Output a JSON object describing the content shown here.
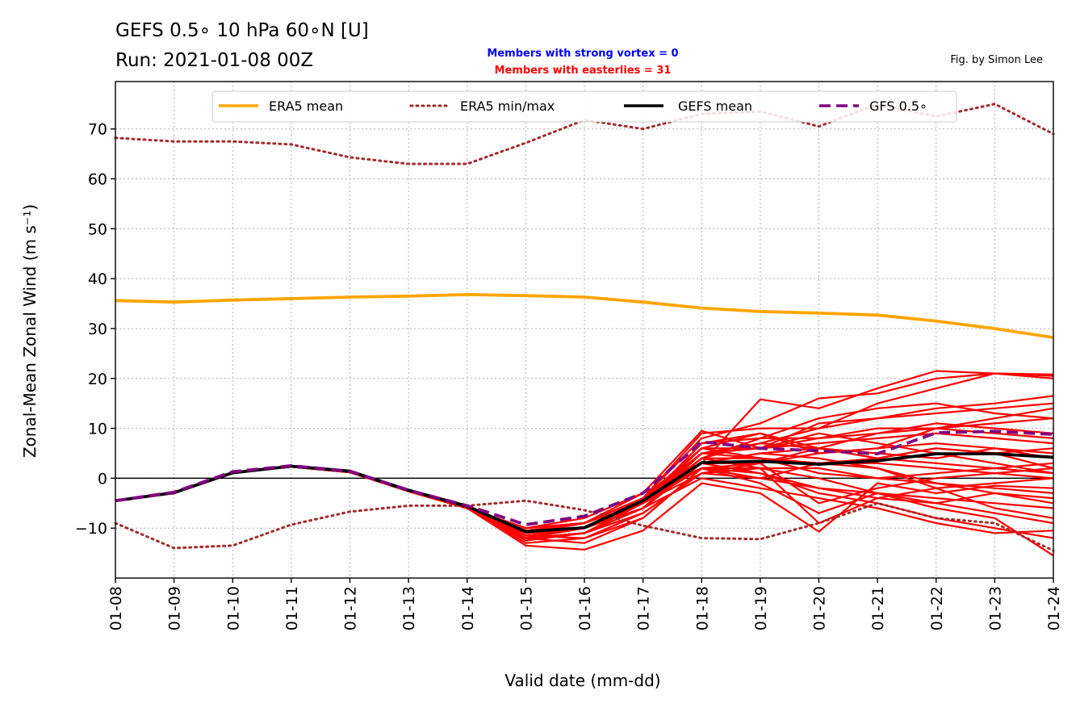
{
  "chart_data": {
    "type": "line",
    "title": "GEFS 0.5$^\\circ$ 10 hPa 60$^\\circ$N [U]",
    "title_lines": [
      "GEFS 0.5∘ 10 hPa 60∘N [U]",
      "Run: 2021-01-08 00Z"
    ],
    "annotations": {
      "strong_vortex": "Members with strong vortex = 0",
      "easterlies": "Members with easterlies = 31",
      "credit": "Fig. by Simon Lee"
    },
    "xlabel": "Valid date (mm-dd)",
    "ylabel": "Zonal-Mean Zonal Wind (m s⁻¹)",
    "ylim": [
      -20,
      79.5
    ],
    "yticks": [
      -10,
      0,
      10,
      20,
      30,
      40,
      50,
      60,
      70
    ],
    "ytick_labels": [
      "−10",
      "0",
      "10",
      "20",
      "30",
      "40",
      "50",
      "60",
      "70"
    ],
    "x": [
      "01-08",
      "01-09",
      "01-10",
      "01-11",
      "01-12",
      "01-13",
      "01-14",
      "01-15",
      "01-16",
      "01-17",
      "01-18",
      "01-19",
      "01-20",
      "01-21",
      "01-22",
      "01-23",
      "01-24"
    ],
    "grid": true,
    "legend_position": "top",
    "legend": [
      {
        "label": "ERA5 mean",
        "style": "solid",
        "color": "#ffa500"
      },
      {
        "label": "ERA5 min/max",
        "style": "dotted",
        "color": "#a52a2a"
      },
      {
        "label": "GEFS mean",
        "style": "solid",
        "color": "#000000"
      },
      {
        "label": "GFS 0.5∘",
        "style": "dashed",
        "color": "#800080"
      }
    ],
    "series": [
      {
        "name": "ERA5 mean",
        "color": "#ffa500",
        "style": "solid",
        "values": [
          35.6,
          35.3,
          35.7,
          36.0,
          36.3,
          36.5,
          36.8,
          36.6,
          36.3,
          35.3,
          34.1,
          33.4,
          33.1,
          32.7,
          31.5,
          30.0,
          28.2
        ]
      },
      {
        "name": "ERA5 min/max",
        "color": "#a52a2a",
        "style": "dotted",
        "values": [
          68.2,
          67.5,
          67.5,
          66.9,
          64.3,
          63.0,
          63.0,
          67.2,
          71.8,
          70.0,
          73.0,
          73.5,
          70.5,
          75.0,
          72.5,
          75.0,
          69.0
        ]
      },
      {
        "name": "ERA5 min/max",
        "color": "#a52a2a",
        "style": "dotted",
        "values": [
          -9.0,
          -14.0,
          -13.5,
          -9.3,
          -6.7,
          -5.5,
          -5.5,
          -4.5,
          -6.4,
          -9.5,
          -12.0,
          -12.2,
          -9.0,
          -5.0,
          -8.0,
          -9.0,
          -14.5
        ]
      },
      {
        "name": "GEFS mean",
        "color": "#000000",
        "style": "solid",
        "values": [
          -4.5,
          -2.9,
          1.1,
          2.4,
          1.4,
          -2.4,
          -5.6,
          -10.7,
          -9.9,
          -4.5,
          3.1,
          3.4,
          2.8,
          3.5,
          4.9,
          4.9,
          4.2
        ]
      },
      {
        "name": "GFS 0.5∘",
        "color": "#800080",
        "style": "dashed",
        "values": [
          -4.5,
          -2.8,
          1.3,
          2.5,
          1.4,
          -2.4,
          -5.5,
          -9.3,
          -7.6,
          -3.0,
          7.3,
          6.0,
          5.5,
          4.9,
          9.1,
          9.4,
          8.8
        ]
      }
    ],
    "members": {
      "name": "GEFS members",
      "color": "#ff0000",
      "values": [
        [
          -4.5,
          -3.0,
          1.2,
          2.3,
          1.2,
          -2.6,
          -6.0,
          -12.0,
          -13.0,
          -8.0,
          2.0,
          1.0,
          -2.0,
          -4.0,
          -5.0,
          -7.0,
          -9.0
        ],
        [
          -4.5,
          -3.0,
          1.2,
          2.3,
          1.2,
          -2.6,
          -6.0,
          -12.0,
          -11.0,
          -5.0,
          5.0,
          4.0,
          3.0,
          4.0,
          6.0,
          5.0,
          2.0
        ],
        [
          -4.5,
          -3.0,
          1.2,
          2.3,
          1.2,
          -2.6,
          -6.0,
          -11.0,
          -10.0,
          -5.0,
          4.0,
          7.0,
          10.0,
          15.0,
          18.0,
          21.0,
          20.5
        ],
        [
          -4.5,
          -3.0,
          1.2,
          2.3,
          1.2,
          -2.6,
          -6.0,
          -11.0,
          -9.0,
          -4.0,
          3.0,
          1.0,
          -3.0,
          -5.0,
          -8.0,
          -10.0,
          -12.0
        ],
        [
          -4.5,
          -3.0,
          1.2,
          2.3,
          1.2,
          -2.6,
          -6.0,
          -10.0,
          -8.0,
          -3.0,
          2.0,
          0.0,
          -2.0,
          -3.0,
          -4.0,
          -5.0,
          -6.0
        ],
        [
          -4.5,
          -3.0,
          1.2,
          2.3,
          1.2,
          -2.6,
          -6.0,
          -10.5,
          -10.0,
          -6.0,
          4.0,
          8.0,
          12.0,
          14.0,
          15.0,
          13.0,
          12.0
        ],
        [
          -4.5,
          -3.0,
          1.2,
          2.3,
          1.2,
          -2.6,
          -6.0,
          -11.5,
          -12.0,
          -7.0,
          1.0,
          3.0,
          5.0,
          6.0,
          7.0,
          6.0,
          5.0
        ],
        [
          -4.5,
          -3.0,
          1.2,
          2.3,
          1.2,
          -2.6,
          -6.0,
          -10.0,
          -9.0,
          -4.0,
          6.0,
          9.0,
          6.0,
          4.0,
          3.0,
          2.0,
          1.0
        ],
        [
          -4.5,
          -3.0,
          1.2,
          2.3,
          1.2,
          -2.6,
          -6.0,
          -12.5,
          -11.0,
          -6.0,
          3.0,
          15.8,
          14.0,
          18.0,
          21.5,
          21.0,
          20.0
        ],
        [
          -4.5,
          -3.0,
          1.2,
          2.3,
          1.2,
          -2.6,
          -6.0,
          -11.0,
          -10.0,
          -5.0,
          2.0,
          2.0,
          2.0,
          0.0,
          -1.0,
          -2.0,
          -3.0
        ],
        [
          -4.5,
          -3.0,
          1.2,
          2.3,
          1.2,
          -2.6,
          -6.0,
          -11.0,
          -10.0,
          -5.0,
          3.0,
          3.0,
          -5.0,
          -2.0,
          0.0,
          1.0,
          2.0
        ],
        [
          -4.5,
          -3.0,
          1.2,
          2.3,
          1.2,
          -2.6,
          -6.0,
          -12.0,
          -10.0,
          -5.0,
          7.0,
          8.0,
          8.0,
          9.0,
          10.0,
          11.0,
          12.0
        ],
        [
          -4.5,
          -3.0,
          1.2,
          2.3,
          1.2,
          -2.6,
          -6.0,
          -10.0,
          -9.0,
          -4.0,
          5.0,
          6.0,
          7.0,
          8.0,
          9.0,
          8.0,
          7.0
        ],
        [
          -4.5,
          -3.0,
          1.2,
          2.3,
          1.2,
          -2.6,
          -6.0,
          -11.0,
          -10.0,
          -6.0,
          0.0,
          -2.0,
          -4.0,
          -6.0,
          -9.0,
          -11.0,
          -10.5
        ],
        [
          -4.5,
          -3.0,
          1.2,
          2.3,
          1.2,
          -2.6,
          -6.0,
          -12.0,
          -11.0,
          -7.0,
          1.0,
          2.0,
          -9.0,
          -4.0,
          -2.0,
          -1.0,
          0.0
        ],
        [
          -4.5,
          -3.0,
          1.2,
          2.3,
          1.2,
          -2.6,
          -6.0,
          -10.0,
          -9.0,
          -4.0,
          9.0,
          10.0,
          10.0,
          12.0,
          14.0,
          15.0,
          16.5
        ],
        [
          -4.5,
          -3.0,
          1.2,
          2.3,
          1.2,
          -2.6,
          -6.0,
          -11.0,
          -10.0,
          -5.0,
          4.0,
          4.0,
          3.0,
          3.0,
          2.0,
          1.0,
          0.0
        ],
        [
          -4.5,
          -3.0,
          1.2,
          2.3,
          1.2,
          -2.6,
          -6.0,
          -12.0,
          -11.0,
          -5.0,
          6.0,
          6.0,
          8.0,
          10.0,
          10.0,
          9.0,
          8.0
        ],
        [
          -4.5,
          -3.0,
          1.2,
          2.3,
          1.2,
          -2.6,
          -6.0,
          -11.0,
          -10.0,
          -5.0,
          5.0,
          7.0,
          6.0,
          5.0,
          4.0,
          6.0,
          4.0
        ],
        [
          -4.5,
          -3.0,
          1.2,
          2.3,
          1.2,
          -2.6,
          -6.0,
          -13.0,
          -12.0,
          -8.0,
          2.0,
          -1.0,
          -7.0,
          -3.0,
          -5.0,
          -3.0,
          -4.0
        ],
        [
          -4.5,
          -3.0,
          1.2,
          2.3,
          1.2,
          -2.6,
          -6.0,
          -11.0,
          -10.0,
          -4.0,
          8.0,
          11.0,
          16.0,
          17.0,
          20.0,
          21.0,
          20.8
        ],
        [
          -4.5,
          -3.0,
          1.2,
          2.3,
          1.2,
          -2.6,
          -6.0,
          -10.0,
          -9.0,
          -5.0,
          6.0,
          4.0,
          1.0,
          0.0,
          1.0,
          2.0,
          3.0
        ],
        [
          -4.5,
          -3.0,
          1.2,
          2.3,
          1.2,
          -2.6,
          -6.0,
          -12.0,
          -10.0,
          -6.0,
          3.0,
          5.0,
          4.0,
          2.0,
          -2.0,
          -6.0,
          -8.0
        ],
        [
          -4.5,
          -3.0,
          1.2,
          2.3,
          1.2,
          -2.6,
          -6.0,
          -11.0,
          -10.0,
          -5.0,
          7.0,
          9.0,
          5.0,
          6.0,
          10.0,
          12.0,
          14.0
        ],
        [
          -4.5,
          -3.0,
          1.2,
          2.3,
          1.2,
          -2.6,
          -6.0,
          -10.5,
          -9.0,
          -4.0,
          2.0,
          3.0,
          6.0,
          9.0,
          11.0,
          10.0,
          9.0
        ],
        [
          -4.5,
          -3.0,
          1.2,
          2.3,
          1.2,
          -2.6,
          -6.0,
          -11.0,
          -10.0,
          -5.0,
          1.0,
          0.0,
          3.0,
          2.0,
          -1.0,
          -3.0,
          -5.0
        ],
        [
          -4.5,
          -3.0,
          1.2,
          2.3,
          1.2,
          -2.6,
          -6.0,
          -12.0,
          -11.0,
          -6.0,
          5.0,
          6.0,
          9.0,
          7.0,
          5.0,
          3.0,
          1.0
        ],
        [
          -4.5,
          -3.0,
          1.2,
          2.3,
          1.2,
          -2.6,
          -6.0,
          -13.5,
          -14.3,
          -10.5,
          -1.0,
          -3.0,
          -10.7,
          -1.0,
          -3.0,
          -1.5,
          -2.0
        ],
        [
          -4.5,
          -3.0,
          1.2,
          2.3,
          1.2,
          -2.6,
          -6.0,
          -10.0,
          -9.0,
          -3.0,
          9.5,
          6.0,
          11.0,
          12.0,
          13.0,
          14.0,
          15.0
        ],
        [
          -4.5,
          -3.0,
          1.2,
          2.3,
          1.2,
          -2.6,
          -6.0,
          -11.0,
          -10.0,
          -5.0,
          4.0,
          2.0,
          0.0,
          -3.0,
          -6.0,
          -8.0,
          -15.5
        ],
        [
          -4.5,
          -3.0,
          1.2,
          2.3,
          1.2,
          -2.6,
          -6.0,
          -11.5,
          -10.0,
          -5.0,
          3.0,
          5.0,
          6.0,
          4.0,
          6.0,
          5.0,
          6.0
        ]
      ]
    }
  }
}
